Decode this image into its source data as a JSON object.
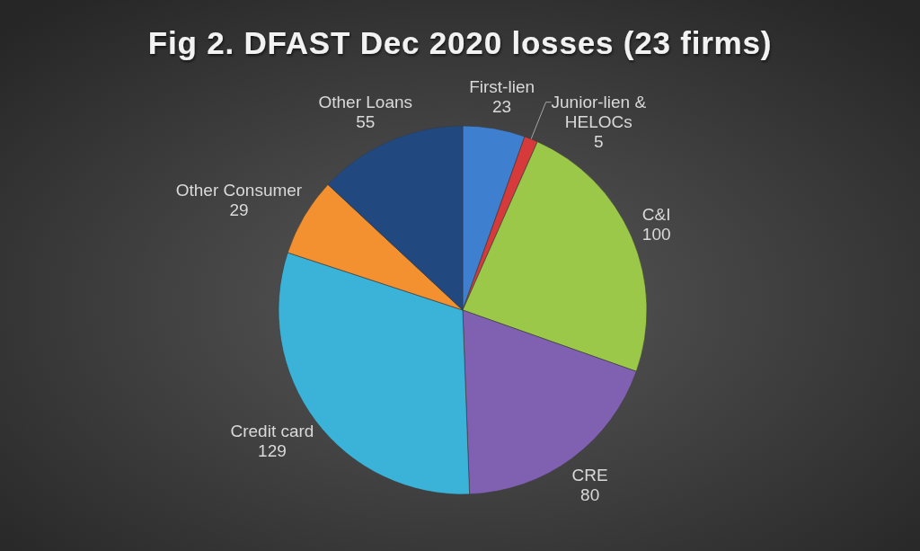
{
  "chart_data": {
    "type": "pie",
    "title": "Fig 2. DFAST Dec 2020 losses (23 firms)",
    "categories": [
      "First-lien",
      "Junior-lien & HELOCs",
      "C&I",
      "CRE",
      "Credit card",
      "Other Consumer",
      "Other Loans"
    ],
    "values": [
      23,
      5,
      100,
      80,
      129,
      29,
      55
    ],
    "colors": [
      "#3f7fd0",
      "#d63a3a",
      "#9cc84a",
      "#8060b0",
      "#3bb3d8",
      "#f39030",
      "#21497f"
    ],
    "data_labels": true
  }
}
